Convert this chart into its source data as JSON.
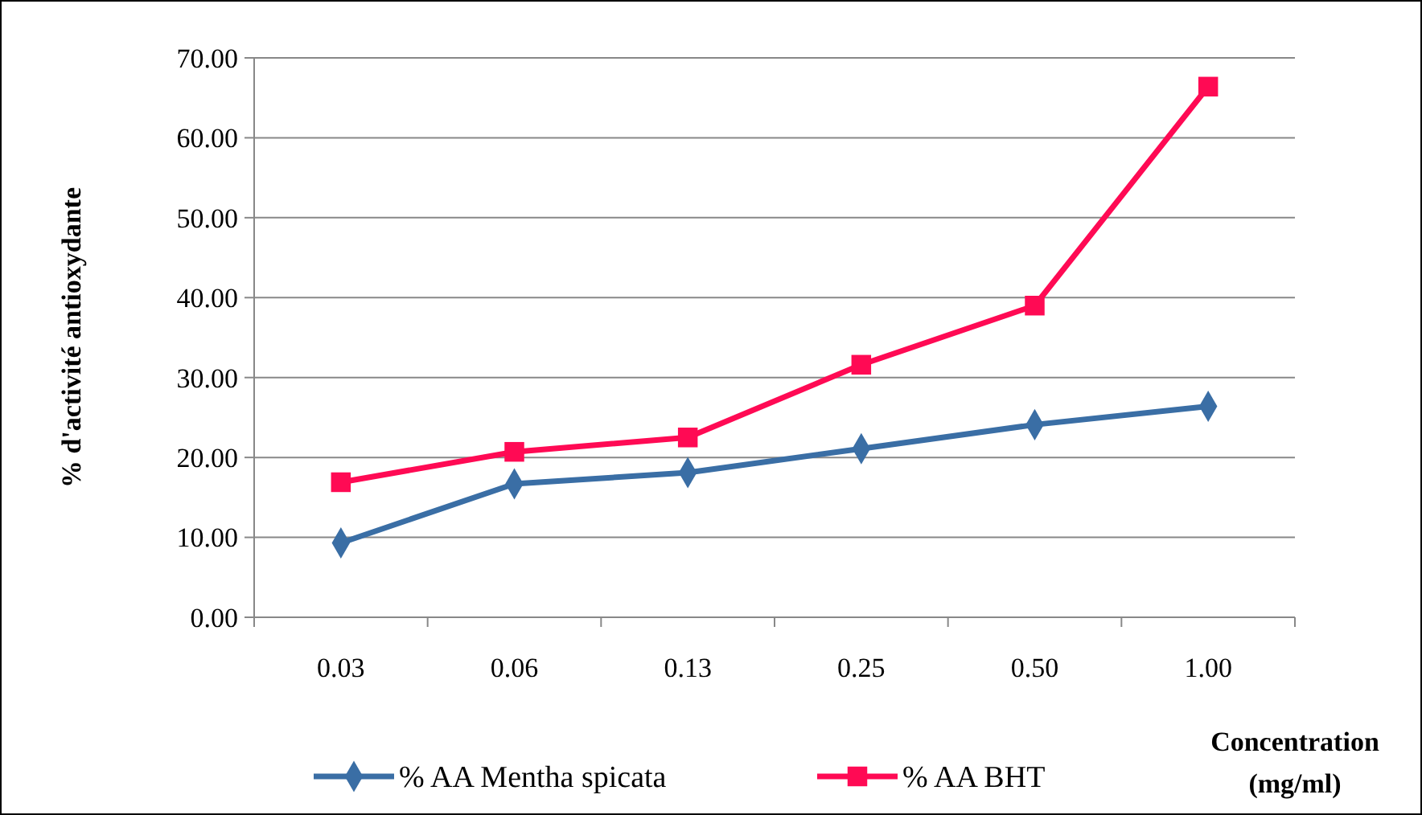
{
  "chart_data": {
    "type": "line",
    "xlabel": "Concentration\n(mg/ml)",
    "ylabel": "% d'activité antioxydante",
    "categories": [
      "0.03",
      "0.06",
      "0.13",
      "0.25",
      "0.50",
      "1.00"
    ],
    "series": [
      {
        "name": "% AA Mentha spicata",
        "color": "#3a6ea5",
        "marker": "diamond",
        "values": [
          9.3,
          16.7,
          18.1,
          21.1,
          24.1,
          26.4
        ]
      },
      {
        "name": "% AA BHT",
        "color": "#ff0a54",
        "marker": "square",
        "values": [
          16.9,
          20.7,
          22.5,
          31.6,
          39.0,
          66.4
        ]
      }
    ],
    "ylim": [
      0,
      70
    ],
    "yticks": [
      {
        "value": 0,
        "label": "0.00"
      },
      {
        "value": 10,
        "label": "10.00"
      },
      {
        "value": 20,
        "label": "20.00"
      },
      {
        "value": 30,
        "label": "30.00"
      },
      {
        "value": 40,
        "label": "40.00"
      },
      {
        "value": 50,
        "label": "50.00"
      },
      {
        "value": 60,
        "label": "60.00"
      },
      {
        "value": 70,
        "label": "70.00"
      }
    ],
    "grid": "y",
    "legend": "bottom",
    "line_style": "solid"
  }
}
